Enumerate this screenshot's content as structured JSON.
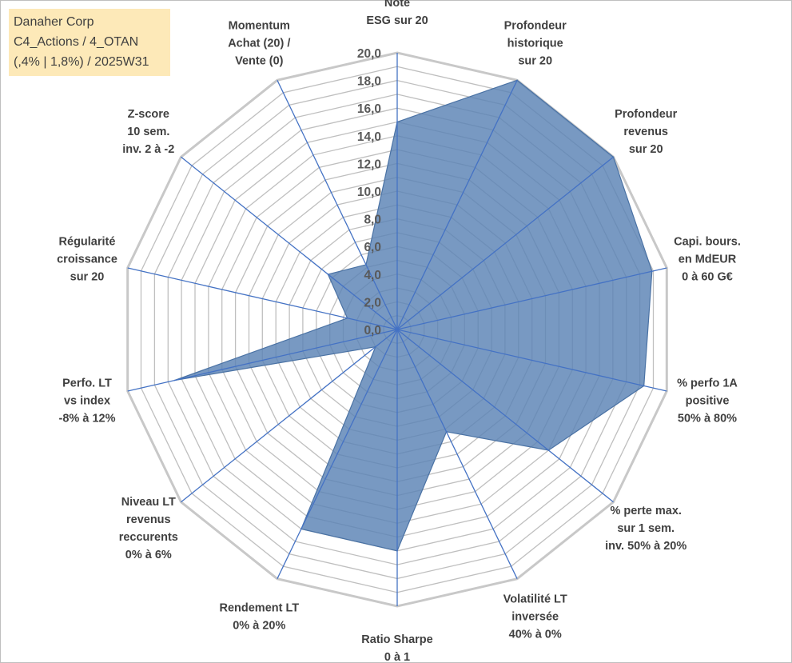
{
  "info_box": {
    "line1": "Danaher Corp",
    "line2": "C4_Actions / 4_OTAN",
    "line3": "(,4% | 1,8%) / 2025W31"
  },
  "chart_data": {
    "type": "radar",
    "title": "",
    "rmin": 0,
    "rmax": 20,
    "tick_step": 2,
    "grid_step": 1,
    "grid": true,
    "tick_labels": [
      "0,0",
      "2,0",
      "4,0",
      "6,0",
      "8,0",
      "10,0",
      "12,0",
      "14,0",
      "16,0",
      "18,0",
      "20,0"
    ],
    "axes": [
      {
        "lines": [
          "Note",
          "ESG sur 20"
        ]
      },
      {
        "lines": [
          "Profondeur",
          "historique",
          "sur 20"
        ]
      },
      {
        "lines": [
          "Profondeur",
          "revenus",
          "sur 20"
        ]
      },
      {
        "lines": [
          "Capi. bours.",
          "en MdEUR",
          "0 à 60 G€"
        ]
      },
      {
        "lines": [
          "% perfo 1A",
          "positive",
          "50% à 80%"
        ]
      },
      {
        "lines": [
          "% perte max.",
          "sur 1 sem.",
          "inv. 50% à 20%"
        ]
      },
      {
        "lines": [
          "Volatilité LT",
          "inversée",
          "40% à 0%"
        ]
      },
      {
        "lines": [
          "Ratio Sharpe",
          "0 à 1"
        ]
      },
      {
        "lines": [
          "Rendement LT",
          "0% à 20%"
        ]
      },
      {
        "lines": [
          "Niveau LT",
          "revenus",
          "reccurents",
          "0% à 6%"
        ]
      },
      {
        "lines": [
          "Perfo. LT",
          "vs index",
          "-8% à 12%"
        ]
      },
      {
        "lines": [
          "Régularité",
          "croissance",
          "sur 20"
        ]
      },
      {
        "lines": [
          "Z-score",
          "10 sem.",
          "inv. 2 à -2"
        ]
      },
      {
        "lines": [
          "Momentum",
          "Achat (20) /",
          "Vente (0)"
        ]
      }
    ],
    "series": [
      {
        "values": [
          15,
          20,
          20,
          18.9,
          18.3,
          14,
          8.2,
          16,
          16,
          2,
          16.5,
          3.7,
          6.4,
          5.2
        ],
        "fill": "#5a82b4",
        "fill_opacity": 0.82,
        "stroke": "#4a72a4"
      }
    ],
    "colors": {
      "grid": "#bfbfbf",
      "grid_outer": "#c8c8c8",
      "spoke": "#4472c4"
    }
  }
}
